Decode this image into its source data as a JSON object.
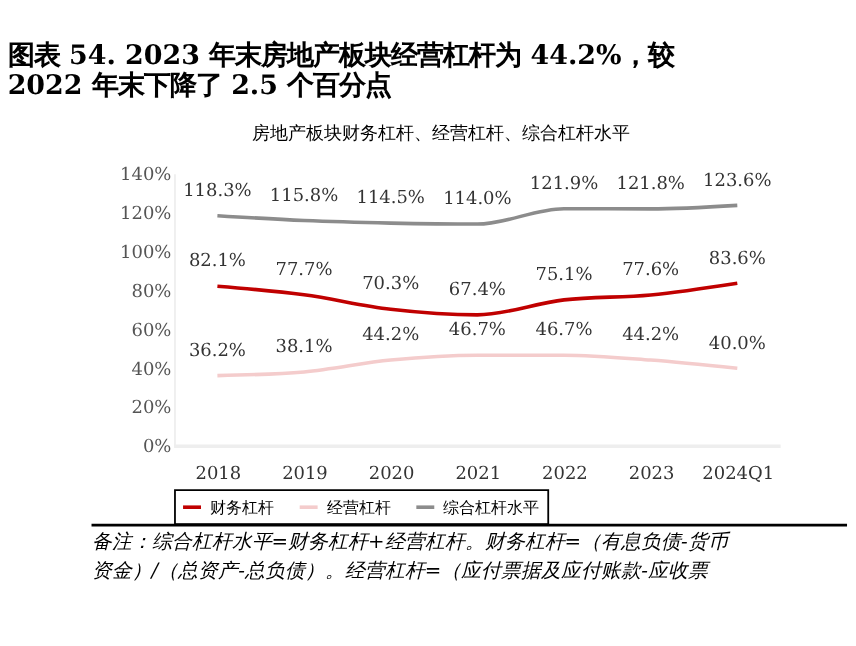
{
  "chart_data": {
    "type": "line",
    "title": [
      "图表 54. 2023 年末房地产板块经营杠杆为 44.2%，较",
      "2022 年末下降了 2.5 个百分点"
    ],
    "subtitle": "房地产板块财务杠杆、经营杠杆、综合杠杆水平",
    "categories": [
      "2018",
      "2019",
      "2020",
      "2021",
      "2022",
      "2023",
      "2024Q1"
    ],
    "series": [
      {
        "name": "财务杠杆",
        "color": "#c00000",
        "values": [
          82.1,
          77.7,
          70.3,
          67.4,
          75.1,
          77.6,
          83.6
        ]
      },
      {
        "name": "经营杠杆",
        "color": "#f4cccc",
        "values": [
          36.2,
          38.1,
          44.2,
          46.7,
          46.7,
          44.2,
          40.0
        ]
      },
      {
        "name": "综合杠杆水平",
        "color": "#8c8c8c",
        "values": [
          118.3,
          115.8,
          114.5,
          114.0,
          121.9,
          121.8,
          123.6
        ]
      }
    ],
    "ylim": [
      0,
      140
    ],
    "yticks": [
      {
        "value": 0,
        "label": "0%"
      },
      {
        "value": 20,
        "label": "20%"
      },
      {
        "value": 40,
        "label": "40%"
      },
      {
        "value": 60,
        "label": "60%"
      },
      {
        "value": 80,
        "label": "80%"
      },
      {
        "value": 100,
        "label": "100%"
      },
      {
        "value": 120,
        "label": "120%"
      },
      {
        "value": 140,
        "label": "140%"
      }
    ],
    "value_labels": [
      [
        "82.1%",
        "77.7%",
        "70.3%",
        "67.4%",
        "75.1%",
        "77.6%",
        "83.6%"
      ],
      [
        "36.2%",
        "38.1%",
        "44.2%",
        "46.7%",
        "46.7%",
        "44.2%",
        "40.0%"
      ],
      [
        "118.3%",
        "115.8%",
        "114.5%",
        "114.0%",
        "121.9%",
        "121.8%",
        "123.6%"
      ]
    ],
    "grid": false,
    "legend": "bottom",
    "marker": "none",
    "line_style": "solid",
    "annotations": [
      "备注：综合杠杆水平=财务杠杆+经营杠杆。财务杠杆=（有息负债-货币",
      "资金）/（总资产-总负债）。经营杠杆=（应付票据及应付账款-应收票"
    ]
  }
}
